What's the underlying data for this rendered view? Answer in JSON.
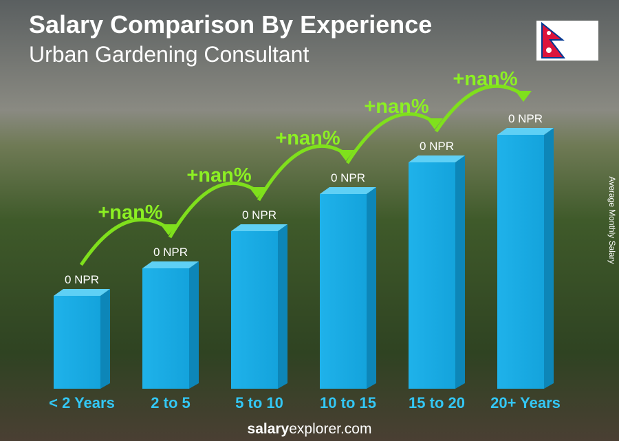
{
  "header": {
    "title": "Salary Comparison By Experience",
    "subtitle": "Urban Gardening Consultant"
  },
  "axis_label": "Average Monthly Salary",
  "bars": [
    {
      "category": "< 2 Years",
      "label": "0 NPR"
    },
    {
      "category": "2 to 5",
      "label": "0 NPR"
    },
    {
      "category": "5 to 10",
      "label": "0 NPR"
    },
    {
      "category": "10 to 15",
      "label": "0 NPR"
    },
    {
      "category": "15 to 20",
      "label": "0 NPR"
    },
    {
      "category": "20+ Years",
      "label": "0 NPR"
    }
  ],
  "changes": [
    "+nan%",
    "+nan%",
    "+nan%",
    "+nan%",
    "+nan%"
  ],
  "footer": {
    "brand_bold": "salary",
    "brand_rest": "explorer.com"
  }
}
